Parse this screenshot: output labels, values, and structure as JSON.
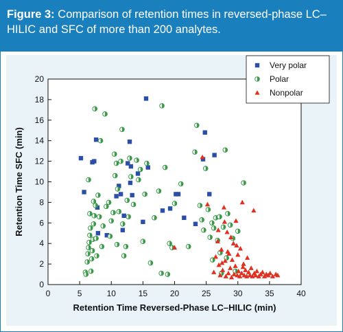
{
  "figure": {
    "label": "Figure 3:",
    "caption": " Comparison of retention times in reversed-phase LC–HILIC and SFC of more than 200 analytes."
  },
  "colors": {
    "caption_bar": "#1a80bd",
    "panel": "#e9f3f8",
    "very_polar": "#2b4fa8",
    "polar": "#3a9a4a",
    "nonpolar": "#e03020"
  },
  "chart_data": {
    "type": "scatter",
    "title": "",
    "xlabel": "Retention Time Reversed-Phase LC–HILIC (min)",
    "ylabel": "Retention Time SFC (min)",
    "xlim": [
      0,
      40
    ],
    "ylim": [
      0,
      20
    ],
    "x_ticks": [
      "0",
      "5",
      "10",
      "15",
      "20",
      "25",
      "30",
      "35",
      "40"
    ],
    "y_ticks": [
      "0",
      "2",
      "4",
      "6",
      "8",
      "10",
      "12",
      "14",
      "16",
      "18",
      "20"
    ],
    "grid": false,
    "legend_placement": "top-right",
    "series": [
      {
        "name": "Very polar",
        "marker": "square",
        "color": "#2b4fa8",
        "points": [
          [
            5.2,
            12.3
          ],
          [
            5.7,
            9.0
          ],
          [
            7.0,
            11.9
          ],
          [
            7.3,
            12.0
          ],
          [
            7.6,
            14.1
          ],
          [
            7.8,
            7.5
          ],
          [
            7.9,
            5.0
          ],
          [
            9.3,
            4.8
          ],
          [
            10.8,
            8.6
          ],
          [
            11.2,
            9.6
          ],
          [
            11.5,
            8.8
          ],
          [
            11.8,
            5.3
          ],
          [
            12.0,
            6.7
          ],
          [
            12.6,
            11.8
          ],
          [
            12.9,
            13.9
          ],
          [
            13.0,
            9.9
          ],
          [
            13.1,
            11.5
          ],
          [
            13.3,
            8.7
          ],
          [
            14.2,
            10.8
          ],
          [
            15.0,
            6.1
          ],
          [
            15.5,
            18.1
          ],
          [
            15.8,
            11.4
          ],
          [
            18.1,
            7.2
          ],
          [
            19.3,
            7.4
          ],
          [
            20.2,
            8.8
          ],
          [
            20.6,
            8.8
          ],
          [
            21.5,
            6.5
          ],
          [
            23.3,
            5.9
          ],
          [
            24.5,
            12.2
          ],
          [
            24.8,
            14.8
          ],
          [
            25.5,
            8.8
          ],
          [
            26.3,
            12.6
          ]
        ]
      },
      {
        "name": "Polar",
        "marker": "circle",
        "color": "#3a9a4a",
        "points": [
          [
            5.9,
            1.2
          ],
          [
            6.0,
            1.0
          ],
          [
            6.2,
            2.2
          ],
          [
            6.3,
            3.0
          ],
          [
            6.4,
            3.6
          ],
          [
            6.5,
            4.1
          ],
          [
            6.6,
            4.8
          ],
          [
            6.7,
            5.5
          ],
          [
            6.4,
            10.2
          ],
          [
            6.6,
            6.9
          ],
          [
            6.8,
            1.3
          ],
          [
            6.9,
            2.5
          ],
          [
            7.0,
            3.3
          ],
          [
            7.1,
            4.4
          ],
          [
            7.2,
            5.9
          ],
          [
            7.3,
            6.7
          ],
          [
            7.2,
            8.1
          ],
          [
            7.4,
            17.1
          ],
          [
            7.5,
            7.7
          ],
          [
            7.6,
            4.5
          ],
          [
            7.7,
            2.8
          ],
          [
            7.9,
            8.7
          ],
          [
            8.1,
            6.6
          ],
          [
            8.3,
            14.0
          ],
          [
            8.5,
            3.7
          ],
          [
            8.7,
            5.7
          ],
          [
            9.0,
            16.6
          ],
          [
            9.2,
            7.6
          ],
          [
            9.6,
            8.0
          ],
          [
            9.8,
            4.7
          ],
          [
            10.0,
            6.2
          ],
          [
            10.3,
            7.0
          ],
          [
            10.5,
            12.7
          ],
          [
            10.6,
            10.6
          ],
          [
            10.8,
            11.8
          ],
          [
            10.9,
            3.9
          ],
          [
            11.0,
            9.3
          ],
          [
            11.2,
            7.1
          ],
          [
            11.5,
            12.0
          ],
          [
            11.7,
            15.1
          ],
          [
            11.8,
            5.9
          ],
          [
            12.0,
            2.8
          ],
          [
            12.3,
            3.7
          ],
          [
            12.5,
            8.2
          ],
          [
            12.7,
            6.6
          ],
          [
            12.9,
            12.3
          ],
          [
            13.1,
            10.5
          ],
          [
            13.5,
            7.8
          ],
          [
            14.0,
            12.1
          ],
          [
            14.3,
            10.2
          ],
          [
            14.6,
            11.2
          ],
          [
            15.0,
            4.2
          ],
          [
            15.3,
            8.8
          ],
          [
            15.6,
            11.8
          ],
          [
            16.2,
            2.1
          ],
          [
            16.8,
            6.5
          ],
          [
            17.5,
            9.1
          ],
          [
            17.9,
            1.1
          ],
          [
            18.0,
            17.4
          ],
          [
            18.5,
            11.4
          ],
          [
            18.9,
            1.0
          ],
          [
            19.2,
            4.0
          ],
          [
            19.6,
            3.6
          ],
          [
            20.0,
            7.9
          ],
          [
            21.0,
            9.8
          ],
          [
            22.2,
            3.7
          ],
          [
            23.2,
            12.9
          ],
          [
            23.5,
            15.5
          ],
          [
            24.0,
            7.7
          ],
          [
            24.3,
            6.3
          ],
          [
            24.6,
            5.3
          ],
          [
            24.9,
            11.3
          ],
          [
            25.3,
            7.3
          ],
          [
            25.6,
            4.6
          ],
          [
            25.9,
            6.0
          ],
          [
            26.2,
            5.5
          ],
          [
            26.5,
            6.5
          ],
          [
            26.8,
            4.3
          ],
          [
            27.1,
            6.6
          ],
          [
            27.4,
            1.1
          ],
          [
            27.7,
            5.6
          ],
          [
            28.0,
            13.1
          ],
          [
            28.4,
            6.9
          ],
          [
            28.8,
            5.8
          ],
          [
            29.2,
            4.5
          ],
          [
            29.6,
            1.3
          ],
          [
            30.0,
            5.2
          ],
          [
            30.9,
            9.9
          ],
          [
            26.0,
            2.4
          ],
          [
            27.2,
            3.1
          ],
          [
            28.2,
            2.6
          ]
        ]
      },
      {
        "name": "Nonpolar",
        "marker": "triangle",
        "color": "#e03020",
        "points": [
          [
            20.0,
            3.6
          ],
          [
            24.4,
            12.4
          ],
          [
            25.2,
            7.8
          ],
          [
            26.2,
            1.2
          ],
          [
            26.5,
            2.7
          ],
          [
            26.8,
            4.2
          ],
          [
            27.0,
            1.9
          ],
          [
            27.2,
            0.9
          ],
          [
            27.4,
            3.4
          ],
          [
            27.6,
            1.4
          ],
          [
            27.8,
            7.5
          ],
          [
            28.0,
            2.3
          ],
          [
            28.1,
            0.8
          ],
          [
            28.3,
            5.1
          ],
          [
            28.5,
            1.1
          ],
          [
            28.6,
            3.0
          ],
          [
            28.8,
            1.6
          ],
          [
            29.0,
            0.7
          ],
          [
            29.1,
            2.4
          ],
          [
            29.3,
            4.0
          ],
          [
            29.4,
            1.0
          ],
          [
            29.6,
            1.8
          ],
          [
            29.7,
            6.2
          ],
          [
            29.9,
            0.9
          ],
          [
            30.0,
            2.9
          ],
          [
            30.1,
            1.3
          ],
          [
            30.3,
            0.8
          ],
          [
            30.4,
            3.5
          ],
          [
            30.6,
            1.1
          ],
          [
            30.7,
            8.0
          ],
          [
            30.9,
            2.0
          ],
          [
            31.0,
            0.9
          ],
          [
            31.2,
            1.4
          ],
          [
            31.4,
            0.8
          ],
          [
            31.5,
            2.6
          ],
          [
            31.7,
            1.2
          ],
          [
            31.9,
            0.9
          ],
          [
            32.1,
            1.6
          ],
          [
            32.3,
            0.8
          ],
          [
            32.5,
            7.2
          ],
          [
            32.6,
            1.1
          ],
          [
            32.8,
            0.9
          ],
          [
            33.0,
            1.3
          ],
          [
            33.3,
            0.8
          ],
          [
            33.6,
            1.0
          ],
          [
            33.9,
            1.2
          ],
          [
            34.2,
            0.8
          ],
          [
            34.5,
            1.0
          ],
          [
            34.8,
            0.9
          ],
          [
            35.1,
            1.1
          ],
          [
            35.5,
            0.8
          ],
          [
            36.0,
            1.0
          ],
          [
            36.3,
            0.9
          ],
          [
            28.9,
            4.6
          ],
          [
            27.9,
            6.1
          ],
          [
            26.9,
            5.3
          ],
          [
            29.8,
            3.8
          ],
          [
            28.4,
            3.2
          ],
          [
            27.5,
            2.1
          ],
          [
            30.8,
            1.7
          ]
        ]
      }
    ]
  }
}
